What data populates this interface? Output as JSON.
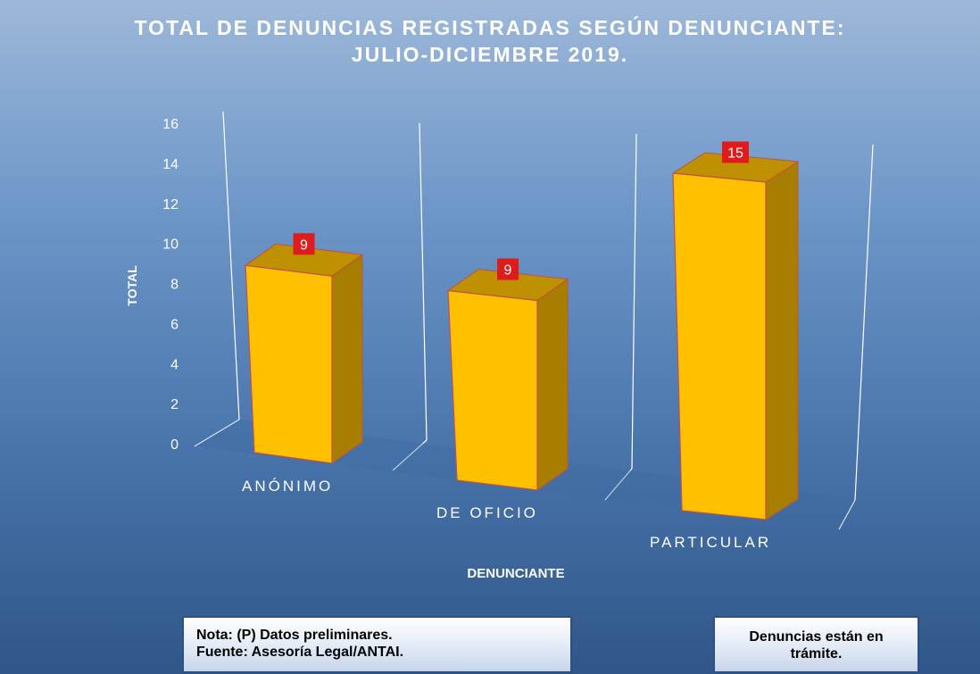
{
  "chart_data": {
    "type": "bar",
    "title_lines": [
      "TOTAL DE DENUNCIAS REGISTRADAS SEGÚN DENUNCIANTE:",
      "JULIO-DICIEMBRE 2019."
    ],
    "categories": [
      "ANÓNIMO",
      "DE OFICIO",
      "PARTICULAR"
    ],
    "values": [
      9,
      9,
      15
    ],
    "data_labels": [
      "9",
      "9",
      "15"
    ],
    "xlabel": "DENUNCIANTE",
    "ylabel": "TOTAL",
    "ylim": [
      0,
      16
    ],
    "yticks": [
      "0",
      "2",
      "4",
      "6",
      "8",
      "10",
      "12",
      "14",
      "16"
    ],
    "style": "3d-column",
    "grid": false,
    "legend": "none",
    "colors": {
      "bar_front": "#ffc000",
      "bar_side": "#a77e00",
      "bar_top": "#bf9000",
      "bar_edge": "#c0504d",
      "data_label_bg": "#e01b1b"
    }
  },
  "notes": {
    "source_lines": [
      "Nota: (P) Datos preliminares.",
      "Fuente: Asesoría Legal/ANTAI."
    ],
    "status": "Denuncias están en trámite."
  }
}
